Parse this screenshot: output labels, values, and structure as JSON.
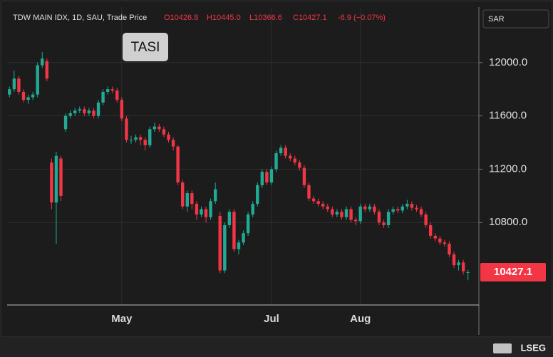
{
  "chart_data": {
    "type": "candlestick",
    "title": "TDW MAIN IDX, 1D, SAU, Trade Price",
    "ohlc_labels": [
      "O10426.8",
      "H10445.0",
      "L10366.6",
      "C10427.1"
    ],
    "change": "-6.9 (−0.07%)",
    "badge": "TASI",
    "currency": "SAR",
    "last_price": 10427.1,
    "up_color": "#22ab94",
    "down_color": "#f23645",
    "grid": true,
    "ylim": [
      10181,
      12416
    ],
    "yticks": [
      {
        "value": 10800,
        "label": "10800.0"
      },
      {
        "value": 11200,
        "label": "11200.0"
      },
      {
        "value": 11600,
        "label": "11600.0"
      },
      {
        "value": 12000,
        "label": "12000.0"
      }
    ],
    "categories": [
      null,
      null,
      null,
      null,
      null,
      null,
      null,
      null,
      null,
      null,
      null,
      null,
      null,
      null,
      null,
      null,
      null,
      null,
      null,
      null,
      null,
      null,
      null,
      null,
      "May",
      null,
      null,
      null,
      null,
      null,
      null,
      null,
      null,
      null,
      null,
      null,
      null,
      null,
      null,
      null,
      null,
      null,
      null,
      null,
      null,
      null,
      null,
      null,
      null,
      null,
      null,
      null,
      null,
      null,
      null,
      null,
      "Jul",
      null,
      null,
      null,
      null,
      null,
      null,
      null,
      null,
      null,
      null,
      null,
      null,
      null,
      null,
      null,
      null,
      null,
      null,
      "Aug",
      null,
      null,
      null,
      null,
      null,
      null,
      null,
      null,
      null,
      null,
      null,
      null,
      null,
      null,
      null,
      null,
      null,
      null,
      null,
      null,
      null,
      null,
      null
    ],
    "open": [
      11760,
      11800,
      11880,
      11780,
      11720,
      11740,
      11760,
      11980,
      12010,
      11250,
      10950,
      11280,
      11500,
      11600,
      11620,
      11640,
      11650,
      11620,
      11640,
      11600,
      11700,
      11780,
      11800,
      11790,
      11720,
      11580,
      11420,
      11420,
      11440,
      11420,
      11380,
      11500,
      11520,
      11500,
      11460,
      11420,
      11370,
      11100,
      10920,
      11020,
      10940,
      10860,
      10900,
      10840,
      10960,
      10850,
      10440,
      10780,
      10880,
      10600,
      10650,
      10720,
      10860,
      10940,
      11080,
      11180,
      11100,
      11200,
      11320,
      11360,
      11300,
      11280,
      11250,
      11210,
      11080,
      10980,
      10960,
      10940,
      10920,
      10900,
      10860,
      10880,
      10840,
      10900,
      10820,
      10810,
      10920,
      10900,
      10920,
      10880,
      10800,
      10780,
      10880,
      10900,
      10890,
      10920,
      10940,
      10910,
      10900,
      10860,
      10780,
      10700,
      10680,
      10650,
      10640,
      10560,
      10480,
      10500,
      10426.8
    ],
    "high": [
      11820,
      11940,
      11900,
      11800,
      11760,
      11780,
      12000,
      12080,
      12030,
      11280,
      11330,
      11300,
      11620,
      11640,
      11660,
      11670,
      11670,
      11660,
      11660,
      11720,
      11800,
      11820,
      11820,
      11810,
      11740,
      11600,
      11450,
      11460,
      11460,
      11440,
      11520,
      11550,
      11540,
      11520,
      11480,
      11440,
      11380,
      11120,
      11040,
      11040,
      10960,
      10920,
      10920,
      10980,
      11100,
      10880,
      10800,
      10900,
      10900,
      10670,
      10740,
      10880,
      10960,
      11100,
      11200,
      11200,
      11220,
      11340,
      11380,
      11380,
      11320,
      11300,
      11270,
      11230,
      11100,
      11000,
      10980,
      10960,
      10940,
      10920,
      10900,
      10900,
      10920,
      10920,
      10840,
      10940,
      10940,
      10940,
      10940,
      10900,
      10820,
      10900,
      10920,
      10920,
      10940,
      10970,
      10960,
      10930,
      10920,
      10880,
      10800,
      10720,
      10700,
      10670,
      10660,
      10580,
      10520,
      10520,
      10445
    ],
    "low": [
      11740,
      11780,
      11760,
      11700,
      11690,
      11720,
      11740,
      11960,
      11860,
      10900,
      10640,
      10960,
      11480,
      11580,
      11600,
      11620,
      11600,
      11600,
      11580,
      11580,
      11680,
      11760,
      11770,
      11700,
      11560,
      11400,
      11390,
      11400,
      11380,
      11340,
      11360,
      11480,
      11480,
      11440,
      11400,
      11340,
      11080,
      10900,
      10880,
      10900,
      10820,
      10840,
      10800,
      10820,
      10940,
      10420,
      10420,
      10760,
      10580,
      10560,
      10630,
      10700,
      10840,
      10920,
      11060,
      11080,
      11080,
      11180,
      11300,
      11280,
      11260,
      11230,
      11190,
      11060,
      10960,
      10940,
      10920,
      10900,
      10880,
      10840,
      10840,
      10820,
      10820,
      10800,
      10780,
      10790,
      10880,
      10880,
      10860,
      10780,
      10760,
      10760,
      10860,
      10870,
      10870,
      10900,
      10890,
      10880,
      10840,
      10760,
      10680,
      10660,
      10630,
      10620,
      10540,
      10460,
      10440,
      10410,
      10366.6
    ],
    "close": [
      11800,
      11880,
      11780,
      11720,
      11740,
      11760,
      11980,
      12030,
      11880,
      10950,
      11300,
      11000,
      11600,
      11620,
      11640,
      11650,
      11620,
      11640,
      11600,
      11700,
      11780,
      11800,
      11790,
      11720,
      11580,
      11420,
      11420,
      11440,
      11420,
      11380,
      11500,
      11520,
      11500,
      11460,
      11420,
      11370,
      11100,
      10920,
      11020,
      10940,
      10860,
      10900,
      10840,
      10960,
      11050,
      10440,
      10780,
      10880,
      10600,
      10650,
      10720,
      10860,
      10940,
      11080,
      11180,
      11100,
      11200,
      11320,
      11360,
      11300,
      11280,
      11250,
      11210,
      11080,
      10980,
      10960,
      10940,
      10920,
      10900,
      10860,
      10880,
      10840,
      10900,
      10820,
      10810,
      10920,
      10900,
      10920,
      10880,
      10800,
      10780,
      10880,
      10900,
      10890,
      10920,
      10940,
      10910,
      10900,
      10860,
      10780,
      10700,
      10680,
      10650,
      10640,
      10560,
      10480,
      10500,
      10434,
      10427.1
    ]
  },
  "footer": {
    "brand": "LSEG"
  }
}
